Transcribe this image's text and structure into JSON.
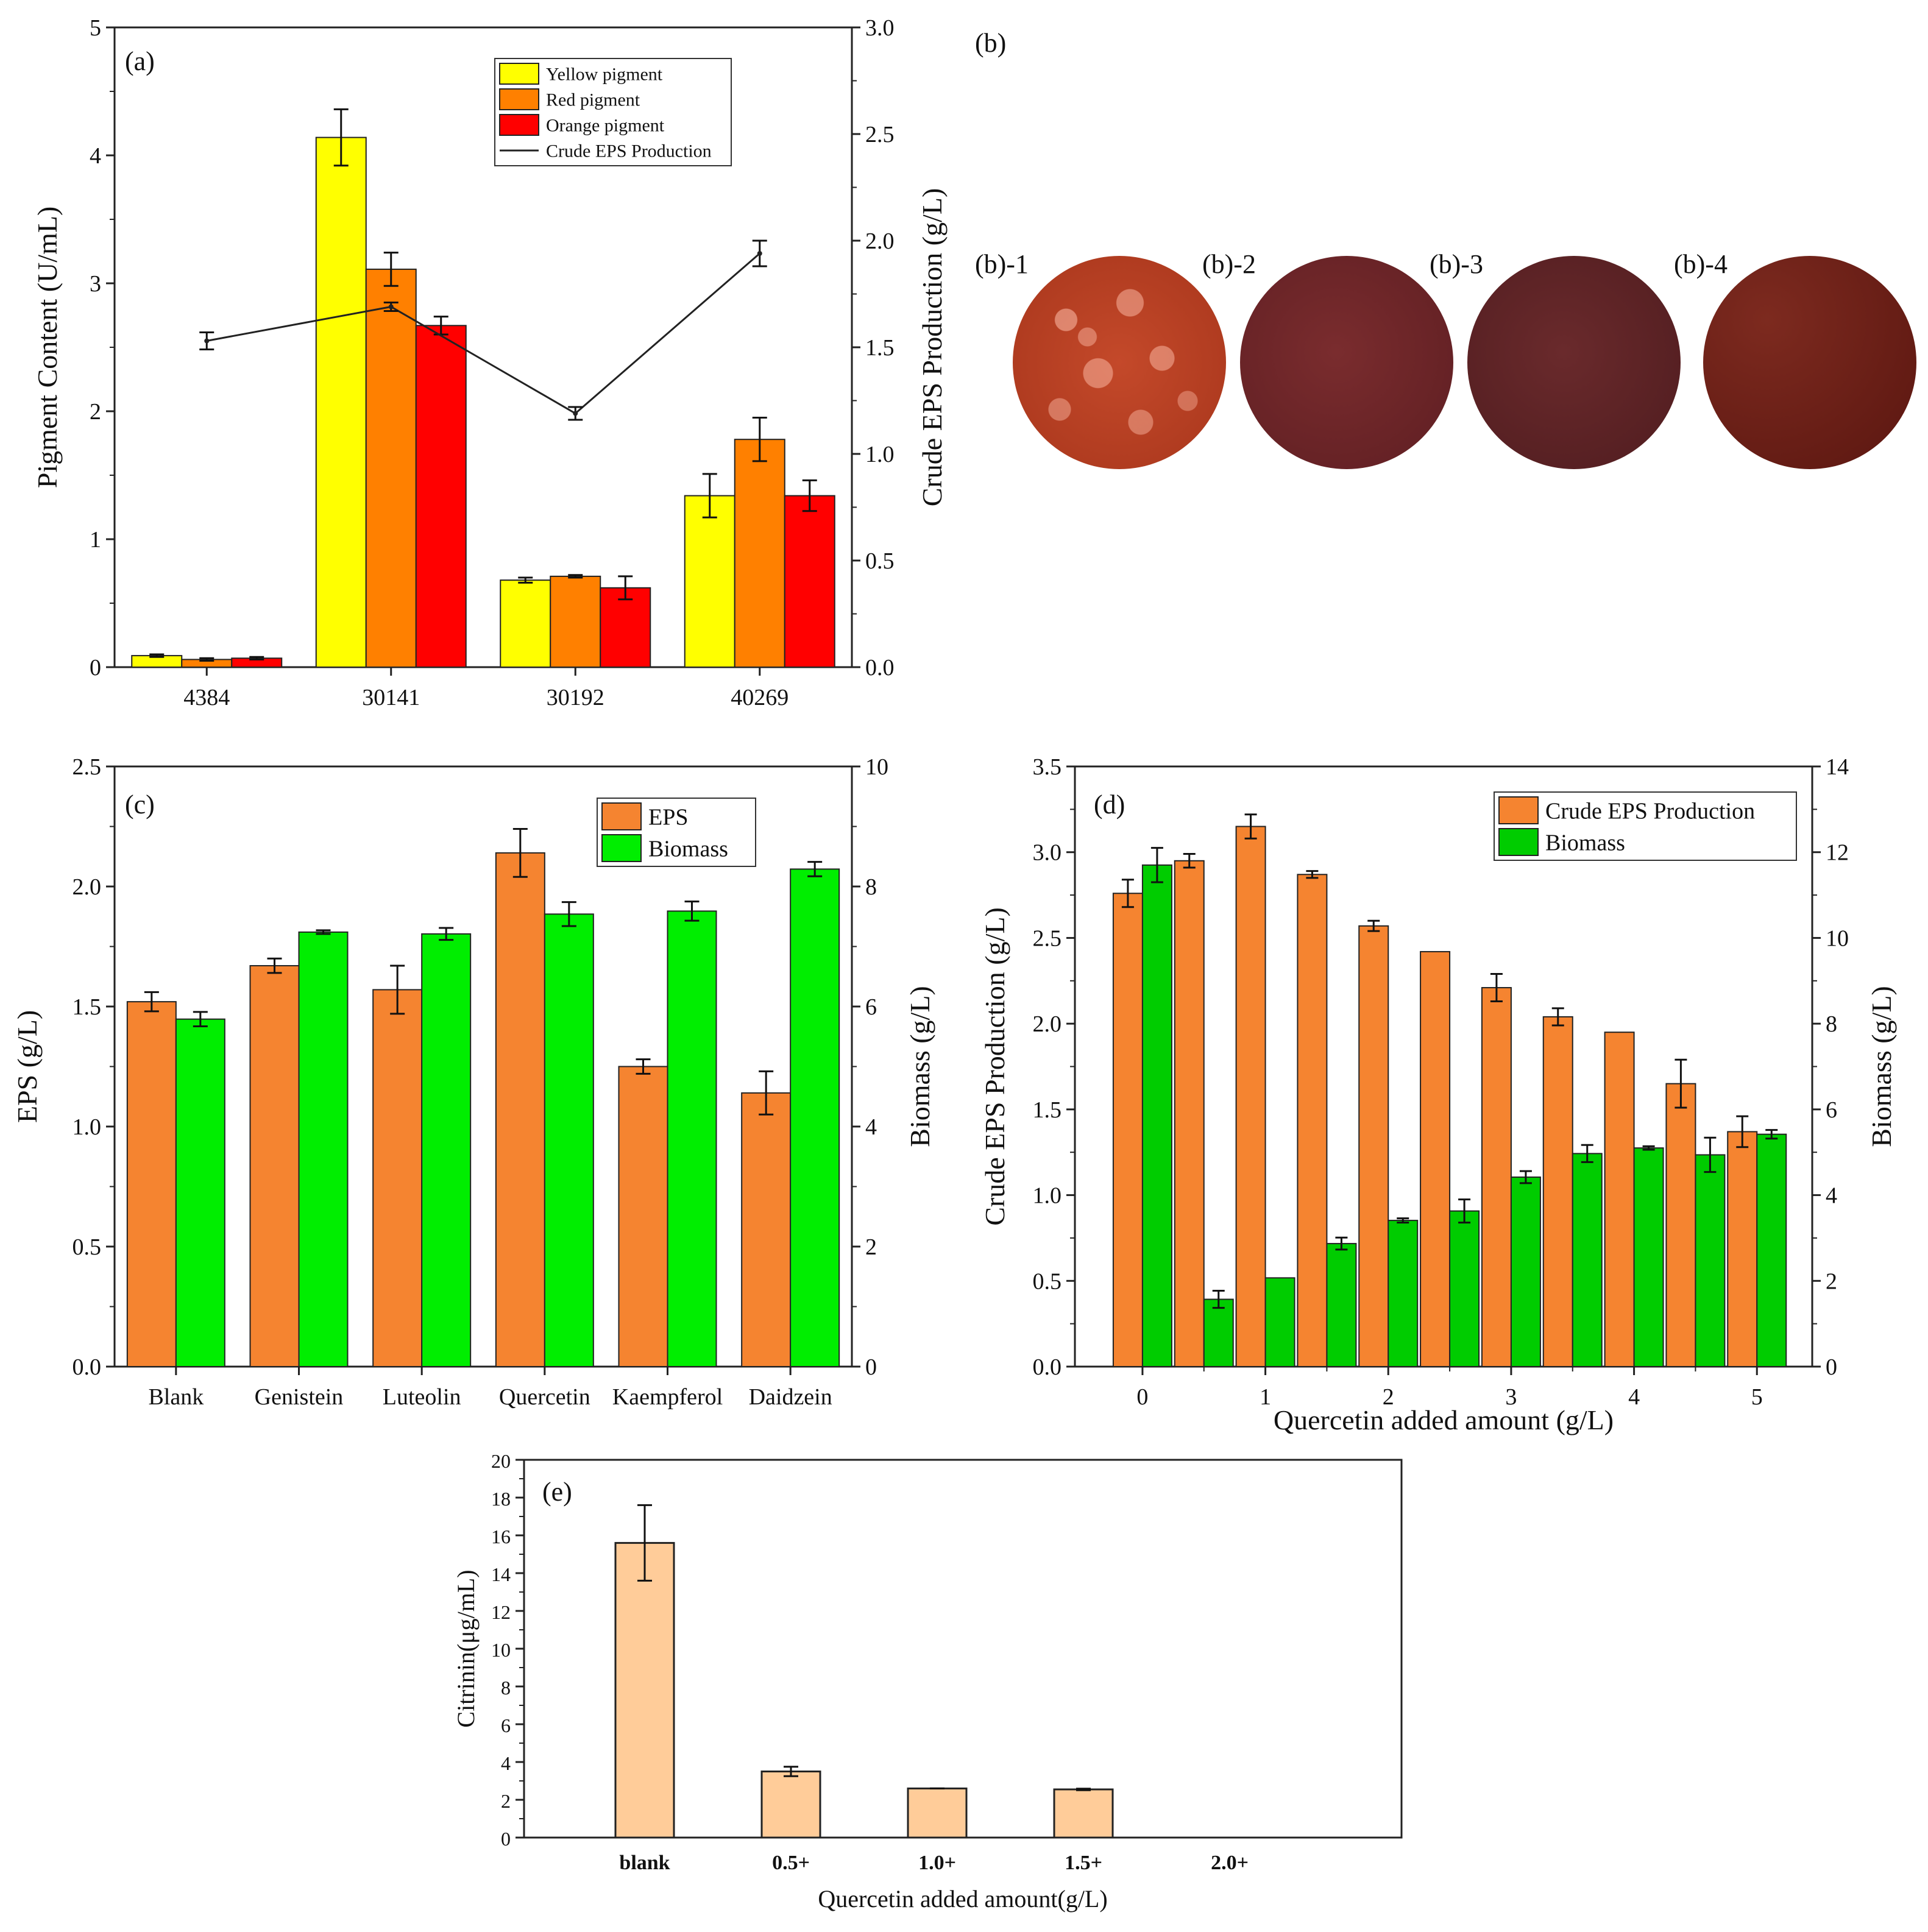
{
  "chart_data": [
    {
      "id": "a",
      "type": "bar",
      "panel_label": "(a)",
      "categories": [
        "4384",
        "30141",
        "30192",
        "40269"
      ],
      "series": [
        {
          "name": "Yellow pigment",
          "color": "#FFFF00",
          "values": [
            0.09,
            4.14,
            0.68,
            1.34
          ],
          "errors": [
            0.01,
            0.22,
            0.02,
            0.17
          ]
        },
        {
          "name": "Red pigment",
          "color": "#FF8000",
          "values": [
            0.06,
            3.11,
            0.71,
            1.78
          ],
          "errors": [
            0.01,
            0.13,
            0.01,
            0.17
          ]
        },
        {
          "name": "Orange pigment",
          "color": "#FF0000",
          "values": [
            0.07,
            2.67,
            0.62,
            1.34
          ],
          "errors": [
            0.01,
            0.07,
            0.09,
            0.12
          ]
        }
      ],
      "line_series": {
        "name": "Crude EPS Production",
        "color": "#222222",
        "values": [
          1.53,
          1.69,
          1.19,
          1.94
        ],
        "errors": [
          0.04,
          0.02,
          0.03,
          0.06
        ]
      },
      "ylabel": "Pigment Content (U/mL)",
      "ylim": [
        0,
        5
      ],
      "yticks": [
        "0",
        "1",
        "2",
        "3",
        "4",
        "5"
      ],
      "y2label": "Crude EPS Production (g/L)",
      "y2lim": [
        0,
        3
      ],
      "y2ticks": [
        "0.0",
        "0.5",
        "1.0",
        "1.5",
        "2.0",
        "2.5",
        "3.0"
      ]
    },
    {
      "id": "c",
      "type": "bar",
      "panel_label": "(c)",
      "categories": [
        "Blank",
        "Genistein",
        "Luteolin",
        "Quercetin",
        "Kaempferol",
        "Daidzein"
      ],
      "series": [
        {
          "name": "EPS",
          "axis": "left",
          "color": "#F58430",
          "values": [
            1.52,
            1.67,
            1.57,
            2.14,
            1.25,
            1.14
          ],
          "errors": [
            0.04,
            0.03,
            0.1,
            0.1,
            0.03,
            0.09
          ]
        },
        {
          "name": "Biomass",
          "axis": "right",
          "color": "#00EE00",
          "values": [
            5.79,
            7.24,
            7.21,
            7.54,
            7.59,
            8.29
          ],
          "errors": [
            0.12,
            0.03,
            0.1,
            0.2,
            0.16,
            0.12
          ]
        }
      ],
      "ylabel": "EPS (g/L)",
      "ylim": [
        0,
        2.5
      ],
      "yticks": [
        "0.0",
        "0.5",
        "1.0",
        "1.5",
        "2.0",
        "2.5"
      ],
      "y2label": "Biomass (g/L)",
      "y2lim": [
        0,
        10
      ],
      "y2ticks": [
        "0",
        "2",
        "4",
        "6",
        "8",
        "10"
      ]
    },
    {
      "id": "d",
      "type": "bar",
      "panel_label": "(d)",
      "categories": [
        "0",
        "0.5",
        "1",
        "1.5",
        "2",
        "2.5",
        "3",
        "3.5",
        "4",
        "4.5",
        "5"
      ],
      "xtick_labels": [
        "0",
        "1",
        "2",
        "3",
        "4",
        "5"
      ],
      "series": [
        {
          "name": "Crude EPS Production",
          "axis": "left",
          "color": "#F58430",
          "values": [
            2.76,
            2.95,
            3.15,
            2.87,
            2.57,
            2.42,
            2.21,
            2.04,
            1.95,
            1.65,
            1.37
          ],
          "errors": [
            0.08,
            0.04,
            0.07,
            0.02,
            0.03,
            0.0,
            0.08,
            0.05,
            0.0,
            0.14,
            0.09
          ]
        },
        {
          "name": "Biomass",
          "axis": "right",
          "color": "#00CC00",
          "values": [
            11.7,
            1.57,
            2.07,
            2.87,
            3.41,
            3.63,
            4.42,
            4.97,
            5.1,
            4.94,
            5.42
          ],
          "errors": [
            0.4,
            0.2,
            0.0,
            0.14,
            0.05,
            0.27,
            0.14,
            0.2,
            0.04,
            0.4,
            0.1
          ]
        }
      ],
      "xlabel": "Quercetin added amount (g/L)",
      "ylabel": "Crude EPS Production (g/L)",
      "ylim": [
        0,
        3.5
      ],
      "yticks": [
        "0.0",
        "0.5",
        "1.0",
        "1.5",
        "2.0",
        "2.5",
        "3.0",
        "3.5"
      ],
      "y2label": "Biomass (g/L)",
      "y2lim": [
        0,
        14
      ],
      "y2ticks": [
        "0",
        "2",
        "4",
        "6",
        "8",
        "10",
        "12",
        "14"
      ]
    },
    {
      "id": "e",
      "type": "bar",
      "panel_label": "(e)",
      "categories": [
        "blank",
        "0.5+",
        "1.0+",
        "1.5+",
        "2.0+"
      ],
      "series": [
        {
          "name": "Citrinin",
          "color": "#FFCC99",
          "values": [
            15.6,
            3.5,
            2.6,
            2.55,
            0
          ],
          "errors": [
            2.0,
            0.25,
            0.0,
            0.04,
            0
          ]
        }
      ],
      "xlabel": "Quercetin added amount(g/L)",
      "ylabel": "Citrinin(μg/mL)",
      "ylim": [
        0,
        20
      ],
      "yticks": [
        "0",
        "2",
        "4",
        "6",
        "8",
        "10",
        "12",
        "14",
        "16",
        "18",
        "20"
      ]
    }
  ],
  "panel_b": {
    "title": "(b)",
    "plates": [
      {
        "label": "(b)-1",
        "color": "#B8401E"
      },
      {
        "label": "(b)-2",
        "color": "#6E2427"
      },
      {
        "label": "(b)-3",
        "color": "#5E2426"
      },
      {
        "label": "(b)-4",
        "color": "#6B1E16"
      }
    ]
  }
}
